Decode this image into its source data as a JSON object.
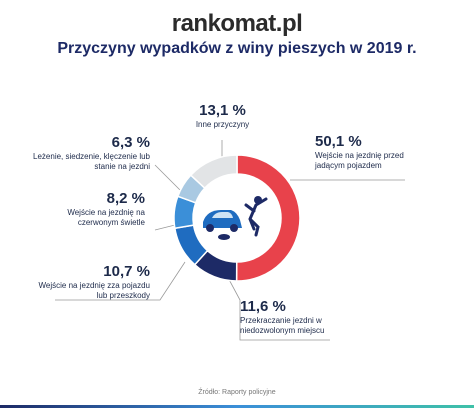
{
  "chart_data": {
    "type": "pie",
    "brand": "rankomat.pl",
    "title": "Przyczyny wypadków z winy pieszych w 2019 r.",
    "categories": [
      "Wejście na jezdnię przed jadącym pojazdem",
      "Przekraczanie jezdni w niedozwolonym miejscu",
      "Wejście na jezdnię zza pojazdu lub przeszkody",
      "Wejście na jezdnię na czerwonym świetle",
      "Leżenie, siedzenie, klęczenie lub stanie na jezdni",
      "Inne przyczyny"
    ],
    "values": [
      50.1,
      11.6,
      10.7,
      8.2,
      6.3,
      13.1
    ],
    "value_labels": [
      "50,1 %",
      "11,6 %",
      "10,7 %",
      "8,2 %",
      "6,3 %",
      "13,1 %"
    ],
    "colors": [
      "#e8424b",
      "#1d2a66",
      "#1f6cc0",
      "#3b8fd8",
      "#a9c9e2",
      "#e2e4e6"
    ],
    "source": "Źródło: Raporty policyjne"
  }
}
